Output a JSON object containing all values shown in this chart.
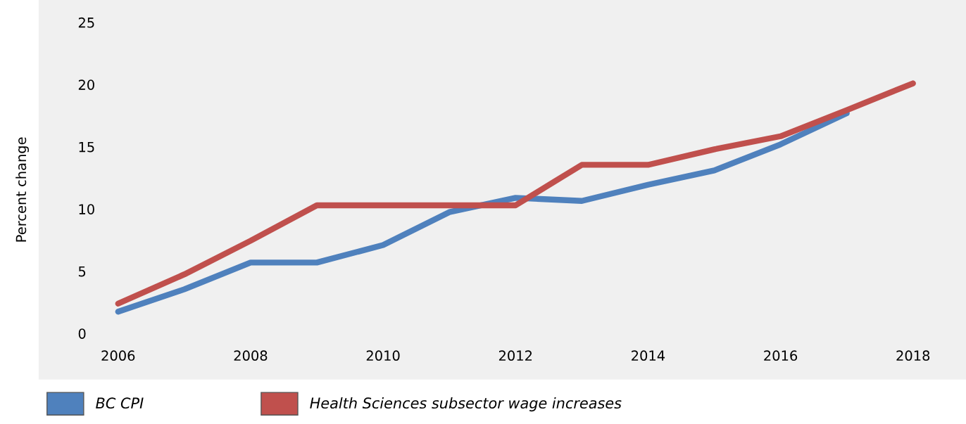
{
  "chart_data": {
    "type": "line",
    "ylabel": "Percent change",
    "x": [
      2006,
      2007,
      2008,
      2009,
      2010,
      2011,
      2012,
      2013,
      2014,
      2015,
      2016,
      2017,
      2018
    ],
    "series": [
      {
        "name": "BC CPI",
        "color": "#4f81bd",
        "values": [
          1.75,
          3.55,
          5.7,
          5.7,
          7.1,
          9.75,
          10.9,
          10.65,
          11.95,
          13.1,
          15.2,
          17.7,
          null
        ]
      },
      {
        "name": "Health Sciences subsector wage increases",
        "color": "#c0504d",
        "values": [
          2.4,
          4.75,
          7.45,
          10.3,
          10.3,
          10.3,
          10.3,
          13.55,
          13.55,
          14.8,
          15.85,
          17.95,
          20.1
        ]
      }
    ],
    "xlim": [
      2004.8,
      2018.8
    ],
    "xticks": [
      2006,
      2008,
      2010,
      2012,
      2014,
      2016,
      2018
    ],
    "ylim": [
      -3.7,
      26.8
    ],
    "yticks": [
      0,
      5,
      10,
      15,
      20,
      25
    ],
    "grid": false,
    "legend": "bottom left",
    "marker": "none",
    "line_style": "solid"
  }
}
